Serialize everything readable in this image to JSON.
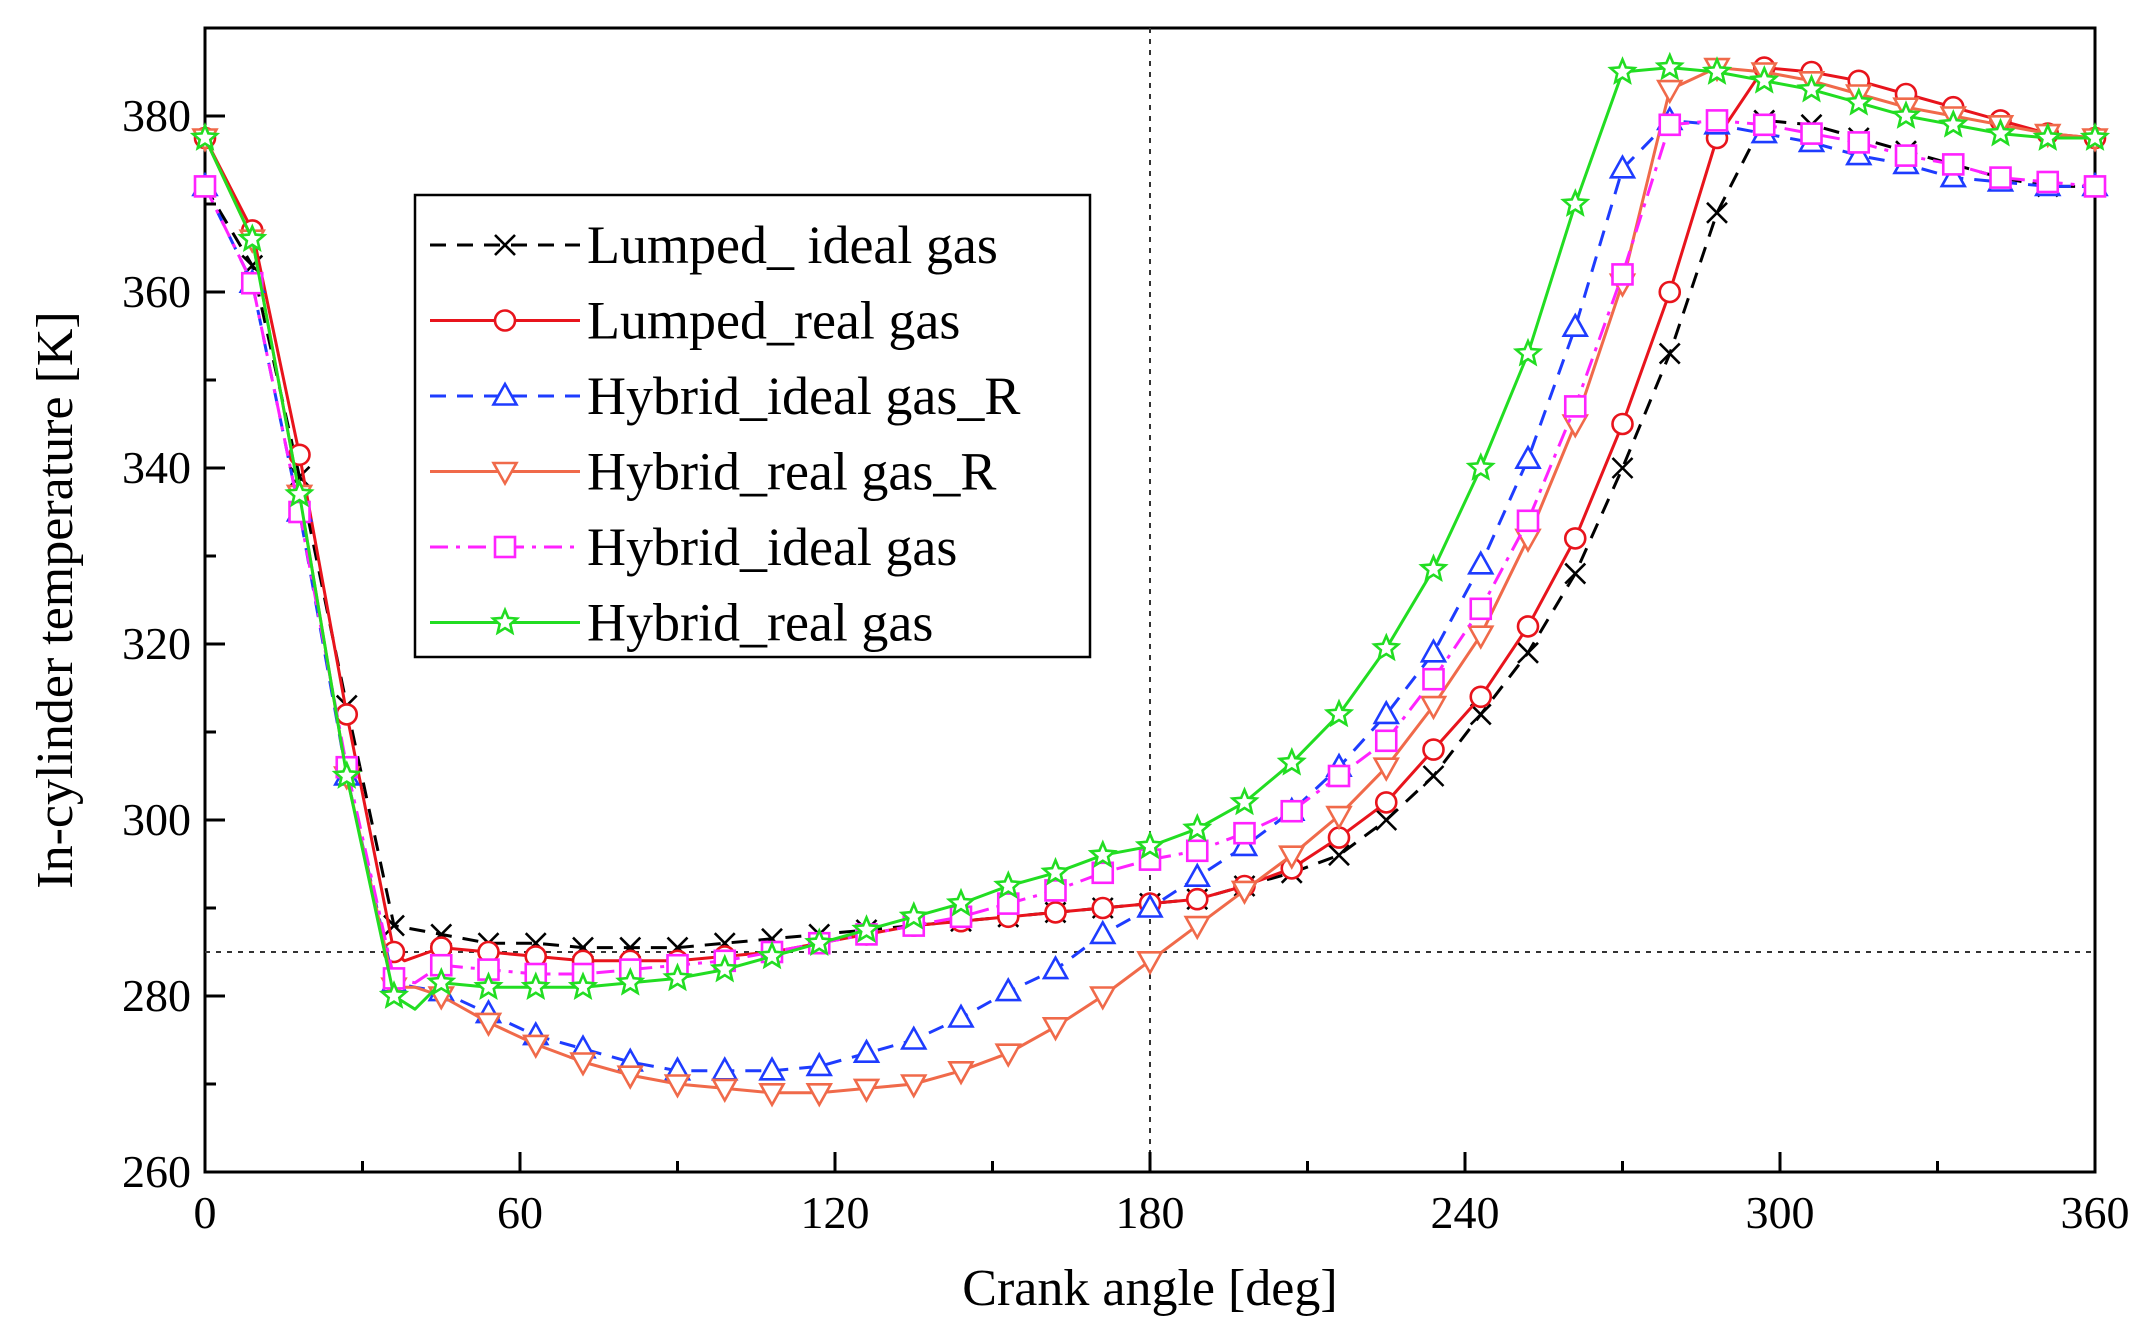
{
  "chart_data": {
    "type": "line",
    "title": "",
    "xlabel": "Crank angle [deg]",
    "ylabel": "In-cylinder temperature [K]",
    "xlim": [
      0,
      360
    ],
    "ylim": [
      260,
      390
    ],
    "xticks": [
      0,
      60,
      120,
      180,
      240,
      300,
      360
    ],
    "yticks": [
      260,
      280,
      300,
      320,
      340,
      360,
      380
    ],
    "reference_lines": {
      "vertical_x": 180,
      "horizontal_y": 285
    },
    "grid": false,
    "legend_position": "upper-left",
    "series": [
      {
        "name": "Lumped_ ideal gas",
        "color": "#000000",
        "dash": "dash",
        "marker": "x",
        "x": [
          0,
          9,
          18,
          27,
          36,
          45,
          54,
          63,
          72,
          81,
          90,
          99,
          108,
          117,
          126,
          135,
          144,
          153,
          162,
          171,
          180,
          189,
          198,
          207,
          216,
          225,
          234,
          243,
          252,
          261,
          270,
          279,
          288,
          297,
          306,
          315,
          324,
          333,
          342,
          351,
          360
        ],
        "y": [
          372,
          363,
          339,
          313,
          288,
          287,
          286,
          286,
          285.5,
          285.5,
          285.5,
          286,
          286.5,
          287,
          287.5,
          288,
          288.5,
          289,
          289.5,
          290,
          290.5,
          291,
          292.5,
          294,
          296,
          300,
          305,
          312,
          319,
          328,
          340,
          353,
          369,
          379.5,
          379,
          377.5,
          376,
          374.5,
          373,
          372,
          372
        ],
        "markers_x": [
          0,
          9,
          18,
          27,
          36,
          45,
          54,
          63,
          72,
          81,
          90,
          99,
          108,
          117,
          126,
          135,
          144,
          153,
          162,
          171,
          180,
          189,
          198,
          207,
          216,
          225,
          234,
          243,
          252,
          261,
          270,
          279,
          288,
          297,
          306,
          315,
          324,
          333,
          342,
          351,
          360
        ]
      },
      {
        "name": "Lumped_real gas",
        "color": "#e8141c",
        "dash": "solid",
        "marker": "circle",
        "x": [
          0,
          9,
          18,
          27,
          36,
          38,
          45,
          54,
          63,
          72,
          81,
          90,
          99,
          108,
          117,
          126,
          135,
          144,
          153,
          162,
          171,
          180,
          189,
          198,
          207,
          216,
          225,
          234,
          243,
          252,
          261,
          270,
          279,
          288,
          297,
          306,
          315,
          324,
          333,
          342,
          351,
          360
        ],
        "y": [
          377.5,
          367,
          341.5,
          312,
          285,
          284,
          285.5,
          285,
          284.5,
          284,
          284,
          284,
          284.5,
          285,
          286,
          287,
          288,
          288.5,
          289,
          289.5,
          290,
          290.5,
          291,
          292.5,
          294.5,
          298,
          302,
          308,
          314,
          322,
          332,
          345,
          360,
          377.5,
          385.5,
          385,
          384,
          382.5,
          381,
          379.5,
          378,
          377.5
        ],
        "markers_x": [
          0,
          9,
          18,
          27,
          36,
          45,
          54,
          63,
          72,
          81,
          90,
          99,
          108,
          117,
          126,
          135,
          144,
          153,
          162,
          171,
          180,
          189,
          198,
          207,
          216,
          225,
          234,
          243,
          252,
          261,
          270,
          279,
          288,
          297,
          306,
          315,
          324,
          333,
          342,
          351,
          360
        ]
      },
      {
        "name": "Hybrid_ideal gas_R",
        "color": "#1e3cff",
        "dash": "dash",
        "marker": "triangle-up",
        "x": [
          0,
          9,
          18,
          27,
          36,
          40,
          45,
          54,
          63,
          72,
          81,
          90,
          99,
          108,
          117,
          126,
          135,
          144,
          153,
          162,
          171,
          180,
          189,
          198,
          207,
          216,
          225,
          234,
          243,
          252,
          261,
          270,
          279,
          288,
          297,
          306,
          315,
          324,
          333,
          342,
          351,
          360
        ],
        "y": [
          372,
          361,
          335,
          305,
          281.5,
          281,
          280.5,
          278,
          275.5,
          274,
          272.5,
          271.5,
          271.5,
          271.5,
          272,
          273.5,
          275,
          277.5,
          280.5,
          283,
          287,
          290,
          293.5,
          297,
          301,
          306,
          312,
          319,
          329,
          341,
          356,
          374,
          379.5,
          379,
          378,
          377,
          375.5,
          374.5,
          373,
          372.5,
          372,
          372
        ],
        "markers_x": [
          0,
          9,
          18,
          27,
          36,
          45,
          54,
          63,
          72,
          81,
          90,
          99,
          108,
          117,
          126,
          135,
          144,
          153,
          162,
          171,
          180,
          189,
          198,
          207,
          216,
          225,
          234,
          243,
          252,
          261,
          270,
          279,
          288,
          297,
          306,
          315,
          324,
          333,
          342,
          351,
          360
        ]
      },
      {
        "name": "Hybrid_real gas_R",
        "color": "#f06a4a",
        "dash": "solid",
        "marker": "triangle-down",
        "x": [
          0,
          9,
          18,
          27,
          36,
          40,
          45,
          54,
          63,
          72,
          81,
          90,
          99,
          108,
          117,
          126,
          135,
          144,
          153,
          162,
          171,
          180,
          189,
          198,
          207,
          216,
          225,
          234,
          243,
          252,
          261,
          270,
          279,
          288,
          297,
          306,
          315,
          324,
          333,
          342,
          351,
          360
        ],
        "y": [
          377.5,
          366,
          337,
          305,
          281,
          281,
          280,
          277,
          274.5,
          272.5,
          271,
          270,
          269.5,
          269,
          269,
          269.5,
          270,
          271.5,
          273.5,
          276.5,
          280,
          284,
          288,
          292,
          296,
          300.5,
          306,
          313,
          321,
          332,
          345,
          361,
          383,
          385.5,
          385,
          384,
          382.5,
          381,
          380,
          379,
          378,
          377.5
        ],
        "markers_x": [
          0,
          9,
          18,
          27,
          36,
          45,
          54,
          63,
          72,
          81,
          90,
          99,
          108,
          117,
          126,
          135,
          144,
          153,
          162,
          171,
          180,
          189,
          198,
          207,
          216,
          225,
          234,
          243,
          252,
          261,
          270,
          279,
          288,
          297,
          306,
          315,
          324,
          333,
          342,
          351,
          360
        ]
      },
      {
        "name": "Hybrid_ideal gas",
        "color": "#ff22ff",
        "dash": "dashdot",
        "marker": "square",
        "x": [
          0,
          9,
          18,
          27,
          36,
          40,
          45,
          54,
          63,
          72,
          81,
          90,
          99,
          108,
          117,
          126,
          135,
          144,
          153,
          162,
          171,
          180,
          189,
          198,
          207,
          216,
          225,
          234,
          243,
          252,
          261,
          270,
          279,
          288,
          297,
          306,
          315,
          324,
          333,
          342,
          351,
          360
        ],
        "y": [
          372,
          361,
          335,
          306,
          282,
          281.5,
          283.5,
          283,
          282.5,
          282.5,
          283,
          283.5,
          284,
          285,
          286,
          287,
          288,
          289,
          290.5,
          292,
          294,
          295.5,
          296.5,
          298.5,
          301,
          305,
          309,
          316,
          324,
          334,
          347,
          362,
          379,
          379.5,
          379,
          378,
          377,
          375.5,
          374.5,
          373,
          372.5,
          372
        ],
        "markers_x": [
          0,
          9,
          18,
          27,
          36,
          45,
          54,
          63,
          72,
          81,
          90,
          99,
          108,
          117,
          126,
          135,
          144,
          153,
          162,
          171,
          180,
          189,
          198,
          207,
          216,
          225,
          234,
          243,
          252,
          261,
          270,
          279,
          288,
          297,
          306,
          315,
          324,
          333,
          342,
          351,
          360
        ]
      },
      {
        "name": "Hybrid_real gas",
        "color": "#22dd22",
        "dash": "solid",
        "marker": "star",
        "x": [
          0,
          9,
          18,
          27,
          36,
          40,
          45,
          54,
          63,
          72,
          81,
          90,
          99,
          108,
          117,
          126,
          135,
          144,
          153,
          162,
          171,
          180,
          189,
          198,
          207,
          216,
          225,
          234,
          243,
          252,
          261,
          270,
          279,
          288,
          297,
          306,
          315,
          324,
          333,
          342,
          351,
          360
        ],
        "y": [
          377.5,
          366,
          337,
          305,
          280,
          278.5,
          281.5,
          281,
          281,
          281,
          281.5,
          282,
          283,
          284.5,
          286,
          287.5,
          289,
          290.5,
          292.5,
          294,
          296,
          297,
          299,
          302,
          306.5,
          312,
          319.5,
          328.5,
          340,
          353,
          370,
          385,
          385.5,
          385,
          384,
          383,
          381.5,
          380,
          379,
          378,
          377.5,
          377.5
        ],
        "markers_x": [
          0,
          9,
          18,
          27,
          36,
          45,
          54,
          63,
          72,
          81,
          90,
          99,
          108,
          117,
          126,
          135,
          144,
          153,
          162,
          171,
          180,
          189,
          198,
          207,
          216,
          225,
          234,
          243,
          252,
          261,
          270,
          279,
          288,
          297,
          306,
          315,
          324,
          333,
          342,
          351,
          360
        ]
      }
    ]
  }
}
